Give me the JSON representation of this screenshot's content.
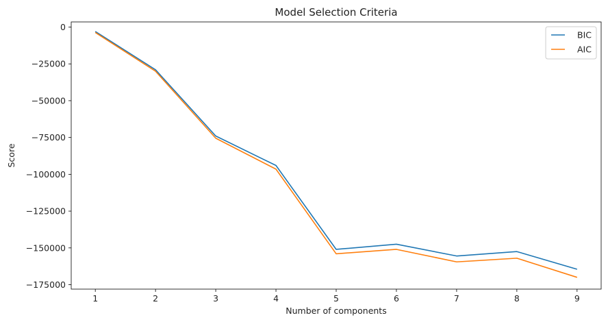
{
  "chart_data": {
    "type": "line",
    "title": "Model Selection Criteria",
    "xlabel": "Number of components",
    "ylabel": "Score",
    "x": [
      1,
      2,
      3,
      4,
      5,
      6,
      7,
      8,
      9
    ],
    "xlim": [
      0.6,
      9.4
    ],
    "ylim": [
      -178000,
      3500
    ],
    "xticks": [
      1,
      2,
      3,
      4,
      5,
      6,
      7,
      8,
      9
    ],
    "xtick_labels": [
      "1",
      "2",
      "3",
      "4",
      "5",
      "6",
      "7",
      "8",
      "9"
    ],
    "yticks": [
      0,
      -25000,
      -50000,
      -75000,
      -100000,
      -125000,
      -150000,
      -175000
    ],
    "ytick_labels": [
      "0",
      "−25000",
      "−50000",
      "−75000",
      "−100000",
      "−125000",
      "−150000",
      "−175000"
    ],
    "grid": false,
    "legend_position": "top-right",
    "series": [
      {
        "name": "BIC",
        "color": "#1f77b4",
        "values": [
          -3000,
          -29000,
          -74000,
          -94000,
          -151000,
          -147500,
          -155500,
          -152500,
          -164500
        ]
      },
      {
        "name": "AIC",
        "color": "#ff7f0e",
        "values": [
          -3700,
          -30000,
          -75500,
          -96500,
          -154000,
          -151000,
          -159500,
          -157000,
          -170000
        ]
      }
    ]
  }
}
